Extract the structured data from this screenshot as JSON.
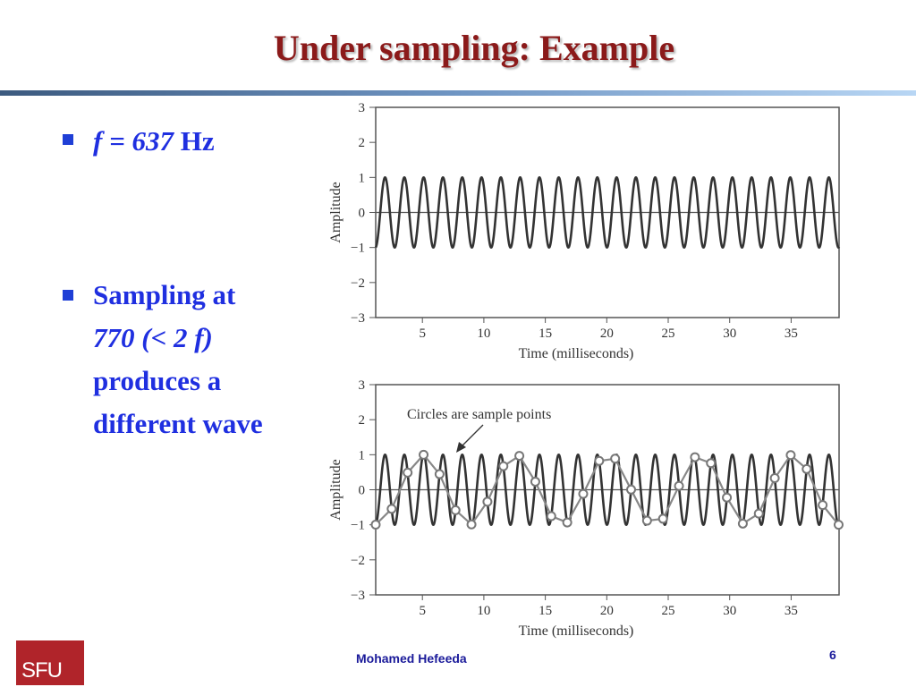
{
  "slide": {
    "title": "Under sampling: Example",
    "bullet1": {
      "f_part": "f = 637",
      "unit": " Hz"
    },
    "bullet2": {
      "line1": "Sampling at",
      "line2": "770 (< 2 f)",
      "line3": "produces a",
      "line4": "different wave"
    },
    "footer_author": "Mohamed  Hefeeda",
    "page_number": "6",
    "logo_text": "SFU"
  },
  "chart_data": [
    {
      "type": "line",
      "xlabel": "Time (milliseconds)",
      "ylabel": "Amplitude",
      "xlim": [
        1.2,
        38.9
      ],
      "ylim": [
        -3,
        3
      ],
      "xticks": [
        5,
        10,
        15,
        20,
        25,
        30,
        35
      ],
      "yticks": [
        3,
        2,
        1,
        0,
        -1,
        -2,
        -3
      ],
      "ytick_labels": [
        "3",
        "2",
        "1",
        "0",
        "−1",
        "−2",
        "−3"
      ],
      "series": [
        {
          "function": "sin",
          "frequency_hz": 637,
          "amplitude": 1,
          "color": "#333333"
        }
      ]
    },
    {
      "type": "line",
      "xlabel": "Time (milliseconds)",
      "ylabel": "Amplitude",
      "annotation": "Circles are sample points",
      "xlim": [
        1.2,
        38.9
      ],
      "ylim": [
        -3,
        3
      ],
      "xticks": [
        5,
        10,
        15,
        20,
        25,
        30,
        35
      ],
      "yticks": [
        3,
        2,
        1,
        0,
        -1,
        -2,
        -3
      ],
      "ytick_labels": [
        "3",
        "2",
        "1",
        "0",
        "−1",
        "−2",
        "−3"
      ],
      "series": [
        {
          "function": "sin",
          "frequency_hz": 637,
          "amplitude": 1,
          "color": "#333333"
        },
        {
          "sample_rate_hz": 770,
          "color": "#888888",
          "marker": "circle"
        }
      ]
    }
  ]
}
